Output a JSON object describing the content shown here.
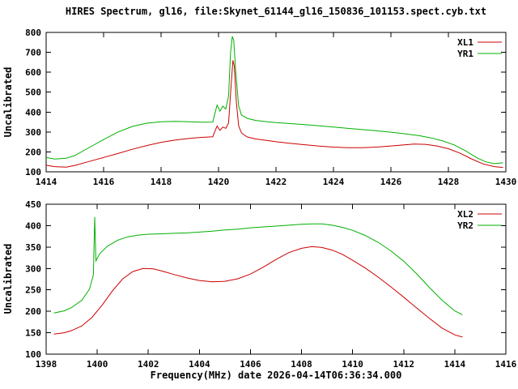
{
  "title": "HIRES Spectrum, gl16, file:Skynet_61144_gl16_150836_101153.spect.cyb.txt",
  "xlabel": "Frequency(MHz) date 2026-04-14T06:36:34.000",
  "colors": {
    "series_red": "#cc0000",
    "series_green": "#00b000",
    "frame": "#000000",
    "background": "#ffffff"
  },
  "chart_data": [
    {
      "type": "line",
      "panel": "top",
      "ylabel": "Uncalibrated",
      "xlim": [
        1414,
        1430
      ],
      "ylim": [
        100,
        800
      ],
      "xticks": [
        1414,
        1416,
        1418,
        1420,
        1422,
        1424,
        1426,
        1428,
        1430
      ],
      "yticks": [
        100,
        200,
        300,
        400,
        500,
        600,
        700,
        800
      ],
      "grid": false,
      "legend_position": "top-right",
      "series": [
        {
          "name": "XL1",
          "color": "#cc0000",
          "points": [
            [
              1414.0,
              133
            ],
            [
              1414.3,
              126
            ],
            [
              1414.7,
              123
            ],
            [
              1415.0,
              132
            ],
            [
              1415.5,
              152
            ],
            [
              1416.0,
              172
            ],
            [
              1416.5,
              192
            ],
            [
              1417.0,
              213
            ],
            [
              1417.5,
              232
            ],
            [
              1418.0,
              248
            ],
            [
              1418.5,
              260
            ],
            [
              1419.0,
              268
            ],
            [
              1419.4,
              273
            ],
            [
              1419.8,
              276
            ],
            [
              1419.85,
              295
            ],
            [
              1419.95,
              330
            ],
            [
              1420.05,
              308
            ],
            [
              1420.15,
              325
            ],
            [
              1420.25,
              318
            ],
            [
              1420.35,
              345
            ],
            [
              1420.45,
              560
            ],
            [
              1420.5,
              660
            ],
            [
              1420.55,
              630
            ],
            [
              1420.62,
              450
            ],
            [
              1420.7,
              330
            ],
            [
              1420.8,
              295
            ],
            [
              1421.0,
              275
            ],
            [
              1421.3,
              265
            ],
            [
              1421.7,
              257
            ],
            [
              1422.0,
              251
            ],
            [
              1422.5,
              243
            ],
            [
              1423.0,
              236
            ],
            [
              1423.5,
              229
            ],
            [
              1424.0,
              224
            ],
            [
              1424.5,
              221
            ],
            [
              1425.0,
              221
            ],
            [
              1425.5,
              224
            ],
            [
              1426.0,
              230
            ],
            [
              1426.5,
              236
            ],
            [
              1426.8,
              239
            ],
            [
              1427.2,
              238
            ],
            [
              1427.6,
              230
            ],
            [
              1428.0,
              216
            ],
            [
              1428.4,
              194
            ],
            [
              1428.8,
              165
            ],
            [
              1429.2,
              140
            ],
            [
              1429.6,
              126
            ],
            [
              1429.9,
              122
            ]
          ]
        },
        {
          "name": "YR1",
          "color": "#00b000",
          "points": [
            [
              1414.0,
              172
            ],
            [
              1414.3,
              164
            ],
            [
              1414.7,
              168
            ],
            [
              1415.0,
              182
            ],
            [
              1415.5,
              222
            ],
            [
              1416.0,
              262
            ],
            [
              1416.5,
              300
            ],
            [
              1417.0,
              328
            ],
            [
              1417.5,
              344
            ],
            [
              1418.0,
              351
            ],
            [
              1418.5,
              353
            ],
            [
              1419.0,
              351
            ],
            [
              1419.4,
              349
            ],
            [
              1419.8,
              350
            ],
            [
              1419.85,
              380
            ],
            [
              1419.95,
              435
            ],
            [
              1420.05,
              405
            ],
            [
              1420.15,
              430
            ],
            [
              1420.25,
              415
            ],
            [
              1420.35,
              480
            ],
            [
              1420.42,
              700
            ],
            [
              1420.48,
              780
            ],
            [
              1420.53,
              760
            ],
            [
              1420.6,
              600
            ],
            [
              1420.7,
              430
            ],
            [
              1420.8,
              385
            ],
            [
              1421.0,
              368
            ],
            [
              1421.3,
              358
            ],
            [
              1421.7,
              351
            ],
            [
              1422.0,
              347
            ],
            [
              1422.5,
              342
            ],
            [
              1423.0,
              337
            ],
            [
              1423.5,
              331
            ],
            [
              1424.0,
              325
            ],
            [
              1424.5,
              318
            ],
            [
              1425.0,
              312
            ],
            [
              1425.5,
              306
            ],
            [
              1426.0,
              299
            ],
            [
              1426.5,
              291
            ],
            [
              1427.0,
              281
            ],
            [
              1427.4,
              270
            ],
            [
              1427.8,
              255
            ],
            [
              1428.2,
              235
            ],
            [
              1428.6,
              205
            ],
            [
              1429.0,
              170
            ],
            [
              1429.3,
              150
            ],
            [
              1429.6,
              141
            ],
            [
              1429.9,
              145
            ]
          ]
        }
      ]
    },
    {
      "type": "line",
      "panel": "bottom",
      "ylabel": "Uncalibrated",
      "xlim": [
        1398,
        1416
      ],
      "ylim": [
        100,
        450
      ],
      "xticks": [
        1398,
        1400,
        1402,
        1404,
        1406,
        1408,
        1410,
        1412,
        1414,
        1416
      ],
      "yticks": [
        100,
        150,
        200,
        250,
        300,
        350,
        400,
        450
      ],
      "grid": false,
      "legend_position": "top-right",
      "series": [
        {
          "name": "XL2",
          "color": "#cc0000",
          "points": [
            [
              1398.3,
              147
            ],
            [
              1398.7,
              150
            ],
            [
              1399.0,
              155
            ],
            [
              1399.4,
              166
            ],
            [
              1399.8,
              186
            ],
            [
              1400.2,
              215
            ],
            [
              1400.6,
              248
            ],
            [
              1401.0,
              276
            ],
            [
              1401.4,
              293
            ],
            [
              1401.8,
              300
            ],
            [
              1402.2,
              299
            ],
            [
              1402.6,
              293
            ],
            [
              1403.0,
              286
            ],
            [
              1403.5,
              278
            ],
            [
              1404.0,
              272
            ],
            [
              1404.5,
              269
            ],
            [
              1405.0,
              270
            ],
            [
              1405.5,
              276
            ],
            [
              1406.0,
              287
            ],
            [
              1406.5,
              303
            ],
            [
              1407.0,
              321
            ],
            [
              1407.5,
              337
            ],
            [
              1408.0,
              347
            ],
            [
              1408.4,
              351
            ],
            [
              1408.8,
              349
            ],
            [
              1409.2,
              343
            ],
            [
              1409.6,
              333
            ],
            [
              1410.0,
              319
            ],
            [
              1410.5,
              301
            ],
            [
              1411.0,
              280
            ],
            [
              1411.5,
              257
            ],
            [
              1412.0,
              233
            ],
            [
              1412.5,
              208
            ],
            [
              1413.0,
              184
            ],
            [
              1413.5,
              161
            ],
            [
              1414.0,
              145
            ],
            [
              1414.3,
              140
            ]
          ]
        },
        {
          "name": "YR2",
          "color": "#00b000",
          "points": [
            [
              1398.3,
              196
            ],
            [
              1398.7,
              201
            ],
            [
              1399.0,
              209
            ],
            [
              1399.4,
              226
            ],
            [
              1399.7,
              252
            ],
            [
              1399.85,
              285
            ],
            [
              1399.9,
              420
            ],
            [
              1399.95,
              318
            ],
            [
              1400.1,
              335
            ],
            [
              1400.4,
              352
            ],
            [
              1400.8,
              366
            ],
            [
              1401.2,
              374
            ],
            [
              1401.6,
              378
            ],
            [
              1402.0,
              380
            ],
            [
              1402.5,
              381
            ],
            [
              1403.0,
              382
            ],
            [
              1403.5,
              383
            ],
            [
              1404.0,
              385
            ],
            [
              1404.5,
              387
            ],
            [
              1405.0,
              390
            ],
            [
              1405.5,
              392
            ],
            [
              1406.0,
              395
            ],
            [
              1406.5,
              397
            ],
            [
              1407.0,
              399
            ],
            [
              1407.5,
              401
            ],
            [
              1408.0,
              403
            ],
            [
              1408.4,
              404
            ],
            [
              1408.8,
              404
            ],
            [
              1409.2,
              401
            ],
            [
              1409.6,
              396
            ],
            [
              1410.0,
              389
            ],
            [
              1410.5,
              377
            ],
            [
              1411.0,
              361
            ],
            [
              1411.5,
              341
            ],
            [
              1412.0,
              317
            ],
            [
              1412.5,
              288
            ],
            [
              1413.0,
              256
            ],
            [
              1413.5,
              226
            ],
            [
              1414.0,
              201
            ],
            [
              1414.3,
              192
            ]
          ]
        }
      ]
    }
  ]
}
